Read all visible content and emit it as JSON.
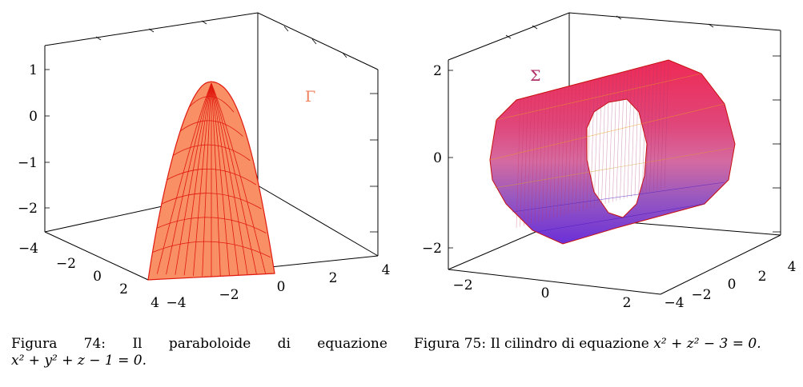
{
  "figures": [
    {
      "shape_label": "Γ",
      "shape_color": "#f0805a",
      "caption_words": [
        "Figura",
        "74:",
        "Il",
        "paraboloide",
        "di",
        "equazione"
      ],
      "caption_equation": "x² + y² + z − 1 = 0.",
      "ticks": {
        "z": [
          "1",
          "0",
          "−1",
          "−2"
        ],
        "y": [
          "−4",
          "−2",
          "0",
          "2",
          "4"
        ],
        "x": [
          "−4",
          "−2",
          "0",
          "2",
          "4"
        ]
      }
    },
    {
      "shape_label": "Σ",
      "shape_color": "#b0306a",
      "caption_text": "Figura 75: Il cilindro di equazione",
      "caption_equation": "x² + z² − 3 = 0.",
      "ticks": {
        "z": [
          "2",
          "0",
          "−2"
        ],
        "x": [
          "−2",
          "0",
          "2"
        ],
        "y": [
          "−4",
          "−2",
          "0",
          "2",
          "4"
        ]
      }
    }
  ],
  "colors": {
    "paraboloid_fill": "#f98f64",
    "paraboloid_mesh": "#e0190f",
    "cylinder_top": "#ee2a55",
    "cylinder_mid": "#e25a8a",
    "cylinder_bottom": "#6a30d8",
    "cylinder_edge": "#c81010"
  }
}
